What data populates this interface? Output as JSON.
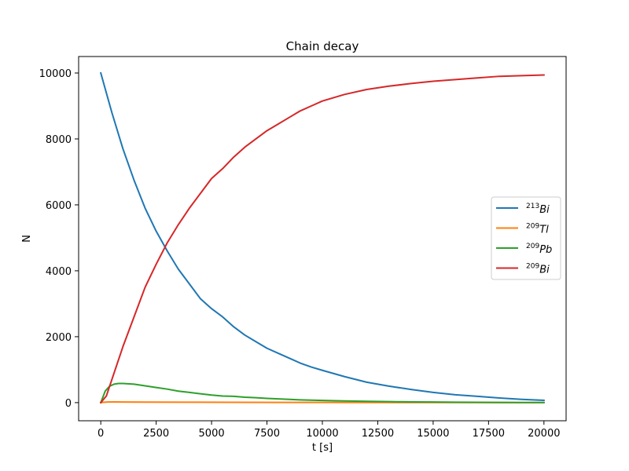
{
  "chart_data": {
    "type": "line",
    "title": "Chain decay",
    "xlabel": "t [s]",
    "ylabel": "N",
    "xlim": [
      -1000,
      21000
    ],
    "ylim": [
      -550,
      10500
    ],
    "xticks": [
      0,
      2500,
      5000,
      7500,
      10000,
      12500,
      15000,
      17500,
      20000
    ],
    "yticks": [
      0,
      2000,
      4000,
      6000,
      8000,
      10000
    ],
    "grid": false,
    "legend_position": "center-right",
    "series": [
      {
        "name": "213Bi",
        "mass": "213",
        "element": "Bi",
        "color": "#1f77b4",
        "x": [
          0,
          500,
          1000,
          1500,
          2000,
          2500,
          3000,
          3500,
          4000,
          4500,
          5000,
          5500,
          6000,
          6500,
          7000,
          7500,
          8000,
          8500,
          9000,
          9500,
          10000,
          11000,
          12000,
          13000,
          14000,
          15000,
          16000,
          17000,
          18000,
          19000,
          20000
        ],
        "y": [
          10000,
          8800,
          7700,
          6750,
          5900,
          5200,
          4600,
          4050,
          3600,
          3150,
          2850,
          2600,
          2300,
          2050,
          1850,
          1650,
          1500,
          1350,
          1200,
          1080,
          980,
          790,
          620,
          500,
          400,
          310,
          240,
          190,
          140,
          100,
          70
        ]
      },
      {
        "name": "209Tl",
        "mass": "209",
        "element": "Tl",
        "color": "#ff7f0e",
        "x": [
          0,
          100,
          300,
          600,
          1000,
          2000,
          4000,
          6000,
          8000,
          10000,
          12000,
          14000,
          16000,
          18000,
          20000
        ],
        "y": [
          0,
          10,
          20,
          22,
          20,
          15,
          12,
          10,
          8,
          6,
          5,
          4,
          3,
          2,
          1
        ]
      },
      {
        "name": "209Pb",
        "mass": "209",
        "element": "Pb",
        "color": "#2ca02c",
        "x": [
          0,
          200,
          400,
          600,
          800,
          1000,
          1500,
          2000,
          2500,
          3000,
          3500,
          4000,
          4500,
          5000,
          5500,
          6000,
          6500,
          7000,
          7500,
          8000,
          8500,
          9000,
          10000,
          11000,
          12000,
          13000,
          14000,
          15000,
          16000,
          17000,
          18000,
          19000,
          20000
        ],
        "y": [
          0,
          350,
          500,
          560,
          580,
          580,
          560,
          510,
          460,
          410,
          350,
          310,
          270,
          230,
          200,
          190,
          165,
          150,
          130,
          115,
          100,
          85,
          65,
          50,
          38,
          30,
          22,
          18,
          13,
          10,
          7,
          5,
          3
        ]
      },
      {
        "name": "209Bi",
        "mass": "209",
        "element": "Bi",
        "color": "#d62728",
        "x": [
          0,
          250,
          500,
          1000,
          1500,
          2000,
          2500,
          3000,
          3500,
          4000,
          4500,
          5000,
          5500,
          6000,
          6500,
          7000,
          7500,
          8000,
          8500,
          9000,
          9500,
          10000,
          11000,
          12000,
          13000,
          14000,
          15000,
          16000,
          17000,
          18000,
          19000,
          20000
        ],
        "y": [
          0,
          200,
          700,
          1700,
          2600,
          3500,
          4200,
          4850,
          5400,
          5900,
          6350,
          6800,
          7100,
          7450,
          7750,
          8000,
          8250,
          8450,
          8650,
          8850,
          9000,
          9150,
          9350,
          9500,
          9600,
          9680,
          9750,
          9800,
          9850,
          9900,
          9920,
          9940
        ]
      }
    ]
  }
}
